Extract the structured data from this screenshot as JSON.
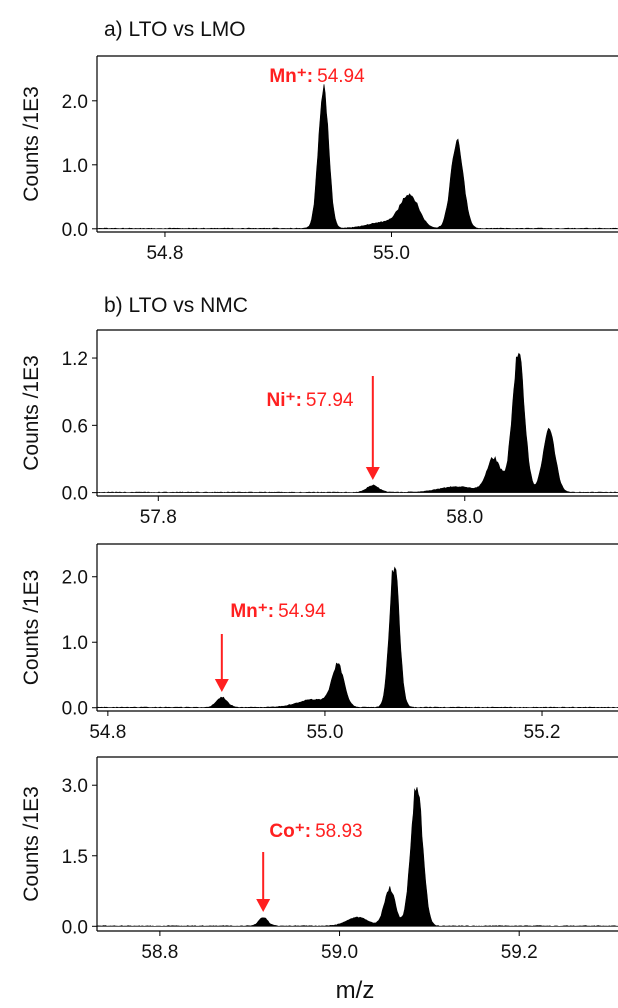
{
  "figure": {
    "x_axis_label": "m/z"
  },
  "colors": {
    "spectrum": "#000000",
    "annotation": "#ff2020",
    "axis": "#000000"
  },
  "chart_data": [
    {
      "type": "area",
      "panel_title": "a) LTO vs LMO",
      "ylabel": "Counts /1E3",
      "xlim": [
        54.74,
        55.2
      ],
      "ylim": [
        -0.05,
        2.7
      ],
      "xticks": [
        54.8,
        55.0
      ],
      "xtick_labels": [
        "54.8",
        "55.0"
      ],
      "yticks": [
        0.0,
        1.0,
        2.0
      ],
      "ytick_labels": [
        "0.0",
        "1.0",
        "2.0"
      ],
      "series": [
        {
          "peaks": [
            [
              54.94,
              2.2,
              0.0045
            ],
            [
              54.995,
              0.1,
              0.015
            ],
            [
              55.016,
              0.5,
              0.008
            ],
            [
              55.058,
              1.35,
              0.0055
            ]
          ]
        }
      ],
      "annotation": {
        "ion": "Mn⁺:",
        "value": "54.94",
        "arrow": false,
        "x": 54.94
      }
    },
    {
      "type": "area",
      "panel_title": "b) LTO vs NMC",
      "ylabel": "Counts /1E3",
      "xlim": [
        57.76,
        58.1
      ],
      "ylim": [
        -0.03,
        1.45
      ],
      "xticks": [
        57.8,
        58.0
      ],
      "xtick_labels": [
        "57.8",
        "58.0"
      ],
      "yticks": [
        0.0,
        0.6,
        1.2
      ],
      "ytick_labels": [
        "0.0",
        "0.6",
        "1.2"
      ],
      "series": [
        {
          "peaks": [
            [
              57.94,
              0.06,
              0.004
            ],
            [
              57.995,
              0.05,
              0.012
            ],
            [
              58.019,
              0.3,
              0.0045
            ],
            [
              58.035,
              1.22,
              0.004
            ],
            [
              58.055,
              0.55,
              0.004
            ]
          ]
        }
      ],
      "annotation": {
        "ion": "Ni⁺:",
        "value": "57.94",
        "arrow": true,
        "x": 57.94
      }
    },
    {
      "type": "area",
      "panel_title": "",
      "ylabel": "Counts /1E3",
      "xlim": [
        54.79,
        55.27
      ],
      "ylim": [
        -0.05,
        2.5
      ],
      "xticks": [
        54.8,
        55.0,
        55.2
      ],
      "xtick_labels": [
        "54.8",
        "55.0",
        "55.2"
      ],
      "yticks": [
        0.0,
        1.0,
        2.0
      ],
      "ytick_labels": [
        "0.0",
        "1.0",
        "2.0"
      ],
      "series": [
        {
          "peaks": [
            [
              54.905,
              0.15,
              0.005
            ],
            [
              54.99,
              0.12,
              0.015
            ],
            [
              55.012,
              0.62,
              0.0055
            ],
            [
              55.064,
              2.2,
              0.0045
            ]
          ]
        }
      ],
      "annotation": {
        "ion": "Mn⁺:",
        "value": "54.94",
        "arrow": true,
        "x": 54.905
      }
    },
    {
      "type": "area",
      "panel_title": "",
      "ylabel": "Counts /1E3",
      "xlim": [
        58.73,
        59.31
      ],
      "ylim": [
        -0.1,
        3.6
      ],
      "xticks": [
        58.8,
        59.0,
        59.2
      ],
      "xtick_labels": [
        "58.8",
        "59.0",
        "59.2"
      ],
      "yticks": [
        0.0,
        1.5,
        3.0
      ],
      "ytick_labels": [
        "0.0",
        "1.5",
        "3.0"
      ],
      "series": [
        {
          "peaks": [
            [
              58.915,
              0.18,
              0.005
            ],
            [
              59.02,
              0.18,
              0.012
            ],
            [
              59.056,
              0.8,
              0.006
            ],
            [
              59.086,
              3.0,
              0.0065
            ]
          ]
        }
      ],
      "annotation": {
        "ion": "Co⁺:",
        "value": "58.93",
        "arrow": true,
        "x": 58.915
      }
    }
  ]
}
